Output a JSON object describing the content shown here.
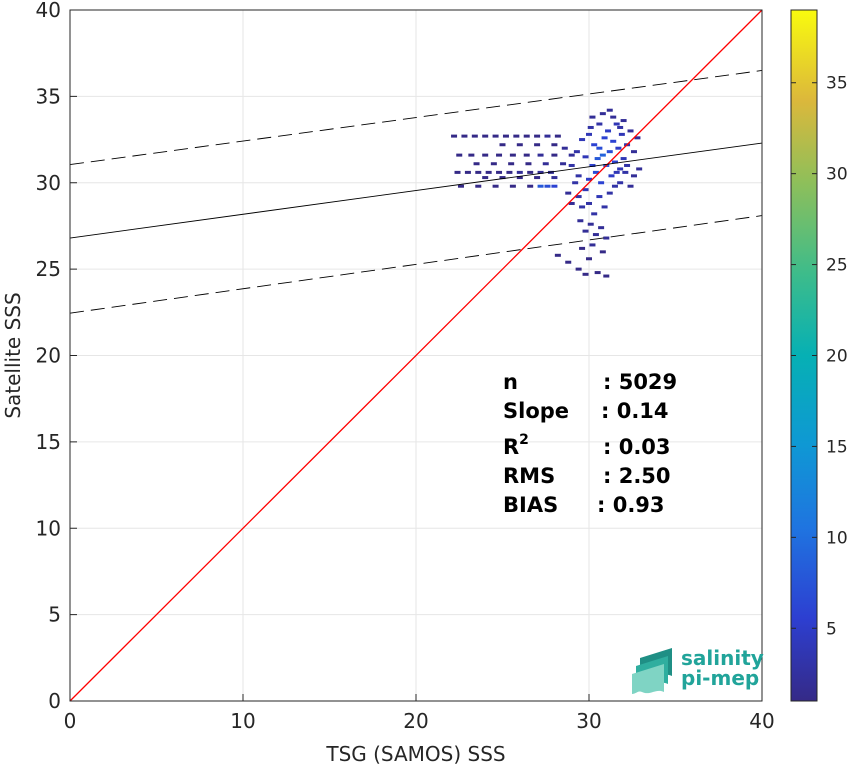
{
  "chart_data": {
    "type": "heatmap",
    "title": "",
    "xlabel": "TSG (SAMOS) SSS",
    "ylabel": "Satellite SSS",
    "xlim": [
      0,
      40
    ],
    "ylim": [
      0,
      40
    ],
    "x_ticks": [
      0,
      10,
      20,
      30,
      40
    ],
    "y_ticks": [
      0,
      5,
      10,
      15,
      20,
      25,
      30,
      35,
      40
    ],
    "grid": true,
    "colorbar": {
      "range": [
        1,
        39
      ],
      "ticks": [
        5,
        10,
        15,
        20,
        25,
        30,
        35
      ],
      "colormap": "parula"
    },
    "identity_line": {
      "from": [
        0,
        0
      ],
      "to": [
        40,
        40
      ],
      "color": "#ff0000"
    },
    "regression_line": {
      "from": [
        0,
        26.8
      ],
      "to": [
        40,
        32.3
      ],
      "color": "#000000"
    },
    "confidence_bounds": [
      {
        "from": [
          0,
          31.05
        ],
        "to": [
          40,
          36.5
        ]
      },
      {
        "from": [
          0,
          22.45
        ],
        "to": [
          40,
          28.1
        ]
      }
    ],
    "stats": {
      "n_label": "n",
      "n_value": ": 5029",
      "slope_label": "Slope",
      "slope_value": ": 0.14",
      "r2_label": "R",
      "r2_sup": "2",
      "r2_value": ": 0.03",
      "rms_label": "RMS",
      "rms_value": ": 2.50",
      "bias_label": "BIAS",
      "bias_value": ": 0.93"
    },
    "density_points": [
      [
        22.2,
        32.7,
        1
      ],
      [
        22.8,
        32.7,
        1
      ],
      [
        23.4,
        32.7,
        1
      ],
      [
        24.0,
        32.7,
        1
      ],
      [
        24.6,
        32.7,
        1
      ],
      [
        25.2,
        32.7,
        1
      ],
      [
        25.8,
        32.7,
        1
      ],
      [
        26.4,
        32.7,
        1
      ],
      [
        27.0,
        32.7,
        1
      ],
      [
        27.6,
        32.7,
        2
      ],
      [
        28.2,
        32.7,
        1
      ],
      [
        22.5,
        31.6,
        1
      ],
      [
        23.2,
        31.6,
        1
      ],
      [
        24.0,
        31.6,
        1
      ],
      [
        24.8,
        31.6,
        1
      ],
      [
        25.6,
        31.6,
        1
      ],
      [
        26.4,
        31.6,
        1
      ],
      [
        27.2,
        31.6,
        2
      ],
      [
        28.0,
        31.6,
        1
      ],
      [
        22.4,
        30.6,
        1
      ],
      [
        23.0,
        30.6,
        1
      ],
      [
        23.6,
        30.6,
        1
      ],
      [
        24.2,
        30.6,
        1
      ],
      [
        24.8,
        30.6,
        1
      ],
      [
        25.4,
        30.6,
        1
      ],
      [
        26.0,
        30.6,
        2
      ],
      [
        26.6,
        30.6,
        1
      ],
      [
        27.2,
        30.6,
        2
      ],
      [
        27.8,
        30.6,
        2
      ],
      [
        23.5,
        31.1,
        1
      ],
      [
        24.5,
        31.1,
        1
      ],
      [
        25.5,
        31.1,
        1
      ],
      [
        26.5,
        31.1,
        1
      ],
      [
        27.5,
        31.1,
        2
      ],
      [
        28.5,
        31.1,
        2
      ],
      [
        22.6,
        29.8,
        1
      ],
      [
        23.6,
        29.8,
        1
      ],
      [
        24.6,
        29.8,
        1
      ],
      [
        25.6,
        29.8,
        1
      ],
      [
        26.6,
        29.8,
        1
      ],
      [
        27.2,
        29.8,
        8
      ],
      [
        27.6,
        29.8,
        7
      ],
      [
        28.0,
        29.8,
        6
      ],
      [
        24.0,
        30.3,
        1
      ],
      [
        25.0,
        30.3,
        1
      ],
      [
        26.0,
        30.3,
        1
      ],
      [
        27.0,
        30.3,
        1
      ],
      [
        28.0,
        30.3,
        2
      ],
      [
        25.0,
        32.2,
        1
      ],
      [
        26.0,
        32.2,
        1
      ],
      [
        27.0,
        32.2,
        1
      ],
      [
        28.0,
        32.2,
        1
      ],
      [
        28.6,
        32.0,
        2
      ],
      [
        29.0,
        31.0,
        3
      ],
      [
        29.3,
        31.8,
        3
      ],
      [
        29.6,
        32.5,
        4
      ],
      [
        29.8,
        31.5,
        4
      ],
      [
        30.0,
        30.2,
        5
      ],
      [
        30.1,
        33.2,
        3
      ],
      [
        30.2,
        31.0,
        6
      ],
      [
        30.3,
        32.2,
        6
      ],
      [
        30.4,
        30.6,
        7
      ],
      [
        30.5,
        31.4,
        8
      ],
      [
        30.6,
        32.0,
        7
      ],
      [
        30.7,
        30.0,
        6
      ],
      [
        30.8,
        31.6,
        9
      ],
      [
        30.9,
        32.6,
        6
      ],
      [
        31.0,
        31.0,
        8
      ],
      [
        31.1,
        33.0,
        5
      ],
      [
        31.2,
        31.8,
        7
      ],
      [
        31.3,
        30.4,
        5
      ],
      [
        31.4,
        32.4,
        6
      ],
      [
        31.5,
        31.2,
        6
      ],
      [
        31.6,
        33.4,
        4
      ],
      [
        31.7,
        32.0,
        5
      ],
      [
        31.8,
        30.8,
        4
      ],
      [
        31.9,
        32.8,
        4
      ],
      [
        32.0,
        31.4,
        4
      ],
      [
        32.2,
        32.2,
        3
      ],
      [
        32.4,
        33.0,
        2
      ],
      [
        32.6,
        31.8,
        2
      ],
      [
        32.8,
        32.6,
        2
      ],
      [
        30.2,
        33.8,
        2
      ],
      [
        30.8,
        34.0,
        2
      ],
      [
        31.4,
        33.8,
        2
      ],
      [
        32.0,
        33.6,
        2
      ],
      [
        29.2,
        30.0,
        3
      ],
      [
        29.4,
        29.2,
        3
      ],
      [
        29.6,
        28.6,
        3
      ],
      [
        29.0,
        28.8,
        2
      ],
      [
        28.8,
        29.4,
        2
      ],
      [
        29.8,
        29.6,
        4
      ],
      [
        30.0,
        28.8,
        3
      ],
      [
        30.3,
        28.2,
        3
      ],
      [
        30.6,
        29.2,
        4
      ],
      [
        30.9,
        28.6,
        3
      ],
      [
        31.2,
        29.4,
        3
      ],
      [
        31.5,
        29.8,
        3
      ],
      [
        31.8,
        30.0,
        3
      ],
      [
        32.1,
        30.6,
        3
      ],
      [
        32.4,
        29.8,
        2
      ],
      [
        32.6,
        30.4,
        2
      ],
      [
        32.9,
        30.8,
        2
      ],
      [
        29.5,
        27.8,
        2
      ],
      [
        29.8,
        27.2,
        2
      ],
      [
        30.1,
        27.6,
        2
      ],
      [
        30.4,
        27.0,
        2
      ],
      [
        30.7,
        27.4,
        2
      ],
      [
        31.0,
        26.8,
        2
      ],
      [
        30.2,
        26.4,
        2
      ],
      [
        29.6,
        26.2,
        1
      ],
      [
        30.8,
        26.0,
        1
      ],
      [
        28.2,
        25.8,
        1
      ],
      [
        28.8,
        25.4,
        1
      ],
      [
        29.4,
        25.0,
        1
      ],
      [
        30.0,
        25.6,
        1
      ],
      [
        29.8,
        24.7,
        1
      ],
      [
        30.5,
        24.8,
        1
      ],
      [
        31.0,
        24.6,
        1
      ],
      [
        29.0,
        31.6,
        2
      ],
      [
        29.4,
        30.4,
        3
      ],
      [
        31.6,
        30.6,
        4
      ],
      [
        32.2,
        31.0,
        3
      ],
      [
        30.0,
        32.8,
        4
      ],
      [
        30.6,
        33.4,
        3
      ],
      [
        31.2,
        34.2,
        2
      ],
      [
        31.8,
        33.2,
        3
      ]
    ]
  },
  "logo": {
    "line1": "salinity",
    "line2": "pi-mep"
  }
}
